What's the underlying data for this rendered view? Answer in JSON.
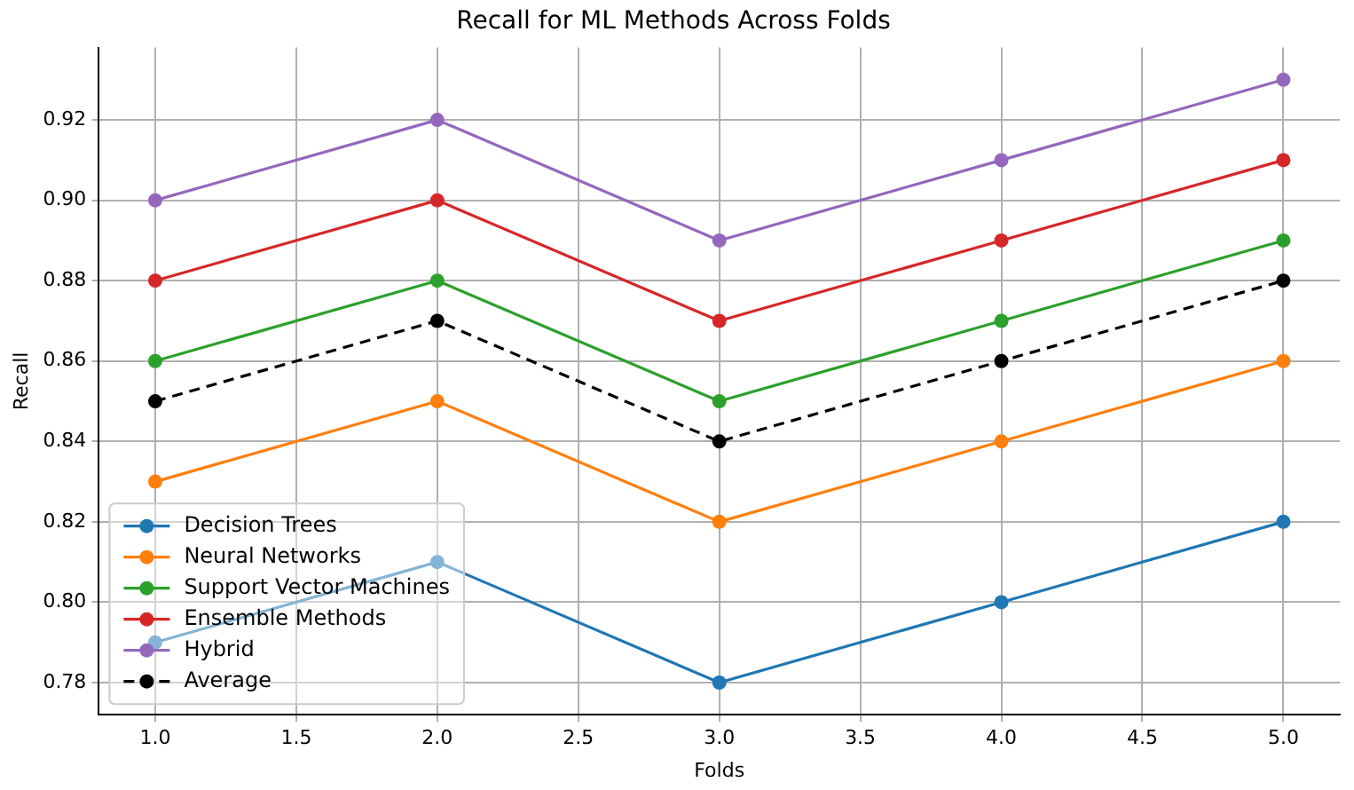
{
  "chart_data": {
    "type": "line",
    "title": "Recall for ML Methods Across Folds",
    "xlabel": "Folds",
    "ylabel": "Recall",
    "x": [
      1,
      2,
      3,
      4,
      5
    ],
    "series": [
      {
        "name": "Decision Trees",
        "color": "#1f77b4",
        "values": [
          0.79,
          0.81,
          0.78,
          0.8,
          0.82
        ]
      },
      {
        "name": "Neural Networks",
        "color": "#ff7f0e",
        "values": [
          0.83,
          0.85,
          0.82,
          0.84,
          0.86
        ]
      },
      {
        "name": "Support Vector Machines",
        "color": "#2ca02c",
        "values": [
          0.86,
          0.88,
          0.85,
          0.87,
          0.89
        ]
      },
      {
        "name": "Ensemble Methods",
        "color": "#d62728",
        "values": [
          0.88,
          0.9,
          0.87,
          0.89,
          0.91
        ]
      },
      {
        "name": "Hybrid",
        "color": "#9467bd",
        "values": [
          0.9,
          0.92,
          0.89,
          0.91,
          0.93
        ]
      },
      {
        "name": "Average",
        "color": "#000000",
        "values": [
          0.85,
          0.87,
          0.84,
          0.86,
          0.88
        ],
        "line_style": "dashed"
      }
    ],
    "xlim": [
      0.8,
      5.2
    ],
    "xticks": [
      {
        "value": 1,
        "label": "1.0"
      },
      {
        "value": 1.5,
        "label": "1.5"
      },
      {
        "value": 2,
        "label": "2.0"
      },
      {
        "value": 2.5,
        "label": "2.5"
      },
      {
        "value": 3,
        "label": "3.0"
      },
      {
        "value": 3.5,
        "label": "3.5"
      },
      {
        "value": 4,
        "label": "4.0"
      },
      {
        "value": 4.5,
        "label": "4.5"
      },
      {
        "value": 5,
        "label": "5.0"
      }
    ],
    "ylim": [
      0.772,
      0.938
    ],
    "yticks": [
      {
        "value": 0.78,
        "label": "0.78"
      },
      {
        "value": 0.8,
        "label": "0.80"
      },
      {
        "value": 0.82,
        "label": "0.82"
      },
      {
        "value": 0.84,
        "label": "0.84"
      },
      {
        "value": 0.86,
        "label": "0.86"
      },
      {
        "value": 0.88,
        "label": "0.88"
      },
      {
        "value": 0.9,
        "label": "0.90"
      },
      {
        "value": 0.92,
        "label": "0.92"
      }
    ],
    "grid": true,
    "legend": "bottom left",
    "marker": "circle",
    "line_style": "solid"
  }
}
